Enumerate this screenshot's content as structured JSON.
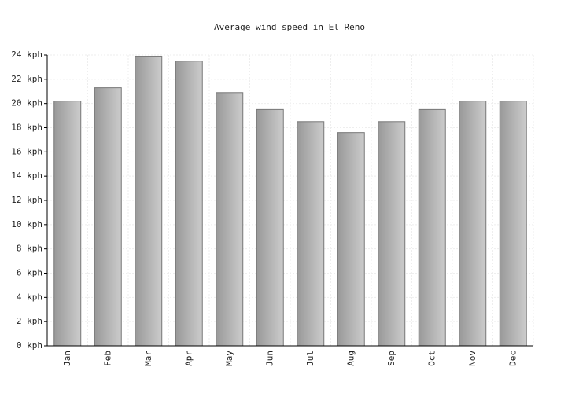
{
  "chart_data": {
    "type": "bar",
    "title": "Average wind speed in El Reno",
    "categories": [
      "Jan",
      "Feb",
      "Mar",
      "Apr",
      "May",
      "Jun",
      "Jul",
      "Aug",
      "Sep",
      "Oct",
      "Nov",
      "Dec"
    ],
    "values": [
      20.2,
      21.3,
      23.9,
      23.5,
      20.9,
      19.5,
      18.5,
      17.6,
      18.5,
      19.5,
      20.2,
      20.2
    ],
    "color": "#aaaaaa",
    "ylim": [
      0,
      24
    ],
    "yticks": [
      {
        "value": 0,
        "label": "0 kph"
      },
      {
        "value": 2,
        "label": "2 kph"
      },
      {
        "value": 4,
        "label": "4 kph"
      },
      {
        "value": 6,
        "label": "6 kph"
      },
      {
        "value": 8,
        "label": "8 kph"
      },
      {
        "value": 10,
        "label": "10 kph"
      },
      {
        "value": 12,
        "label": "12 kph"
      },
      {
        "value": 14,
        "label": "14 kph"
      },
      {
        "value": 16,
        "label": "16 kph"
      },
      {
        "value": 18,
        "label": "18 kph"
      },
      {
        "value": 20,
        "label": "20 kph"
      },
      {
        "value": 22,
        "label": "22 kph"
      },
      {
        "value": 24,
        "label": "24 kph"
      }
    ],
    "grid": true
  }
}
